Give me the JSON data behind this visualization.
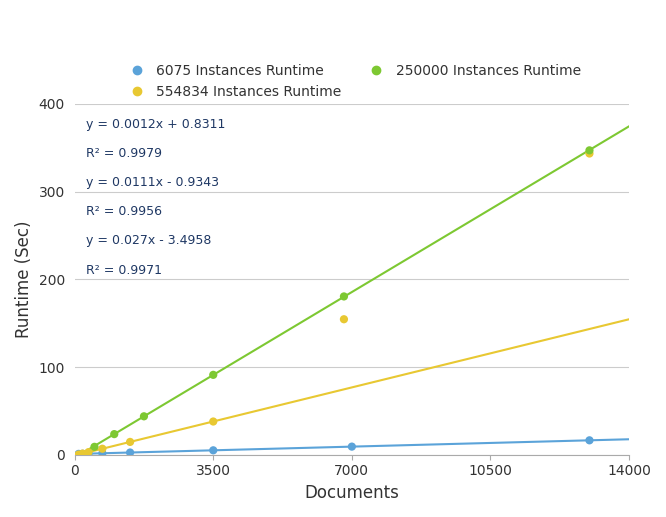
{
  "title": "",
  "xlabel": "Documents",
  "ylabel": "Runtime (Sec)",
  "xlim": [
    0,
    14000
  ],
  "ylim": [
    0,
    400
  ],
  "xticks": [
    0,
    3500,
    7000,
    10500,
    14000
  ],
  "yticks": [
    0,
    100,
    200,
    300,
    400
  ],
  "legend_labels": [
    "6075 Instances Runtime",
    "554834 Instances Runtime",
    "250000 Instances Runtime"
  ],
  "colors": {
    "blue": "#5BA3D9",
    "yellow": "#E8C832",
    "green": "#7DC832"
  },
  "series": {
    "blue": {
      "x": [
        100,
        200,
        350,
        700,
        1400,
        3500,
        7000,
        13000
      ],
      "y": [
        0.96,
        1.07,
        1.25,
        1.67,
        2.51,
        5.03,
        9.24,
        16.43
      ],
      "slope": 0.0012,
      "intercept": 0.8311
    },
    "yellow": {
      "x": [
        100,
        200,
        350,
        700,
        1400,
        3500,
        6800,
        13000
      ],
      "y": [
        0.17,
        1.29,
        2.95,
        6.84,
        14.6,
        37.87,
        154.5,
        343.5
      ],
      "slope": 0.0111,
      "intercept": -0.9343
    },
    "green": {
      "x": [
        500,
        1000,
        1750,
        3500,
        6800,
        13000
      ],
      "y": [
        9.0,
        23.5,
        43.8,
        91.1,
        180.5,
        347.1
      ],
      "slope": 0.027,
      "intercept": -3.4958
    }
  },
  "ann_texts": [
    "y = 0.0012x + 0.8311",
    "R² = 0.9979",
    "y = 0.0111x - 0.9343",
    "R² = 0.9956",
    "y = 0.027x - 3.4958",
    "R² = 0.9971"
  ],
  "ann_color": "#1F3864",
  "background_color": "#FFFFFF",
  "grid_color": "#CCCCCC"
}
